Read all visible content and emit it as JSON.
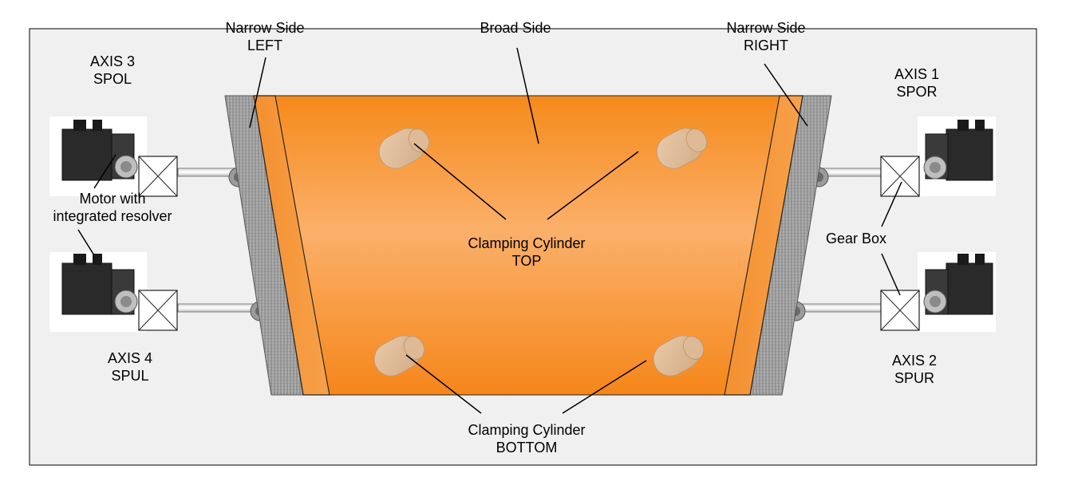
{
  "labels": {
    "narrow_left": [
      "Narrow Side",
      "LEFT"
    ],
    "broad_side": "Broad Side",
    "narrow_right": [
      "Narrow Side",
      "RIGHT"
    ],
    "axis3": [
      "AXIS 3",
      "SPOL"
    ],
    "axis1": [
      "AXIS 1",
      "SPOR"
    ],
    "axis4": [
      "AXIS 4",
      "SPUL"
    ],
    "axis2": [
      "AXIS 2",
      "SPUR"
    ],
    "motor": [
      "Motor with",
      "integrated resolver"
    ],
    "gearbox": "Gear Box",
    "clamp_top": [
      "Clamping Cylinder",
      "TOP"
    ],
    "clamp_bottom": [
      "Clamping Cylinder",
      "BOTTOM"
    ]
  },
  "colors": {
    "plate_orange": "#f7921e",
    "plate_orange_light": "#fbb368",
    "narrow_side_grey": "#9a9a9a",
    "panel_bg": "#f0f0f0",
    "motor_body": "#2a2a2a"
  }
}
